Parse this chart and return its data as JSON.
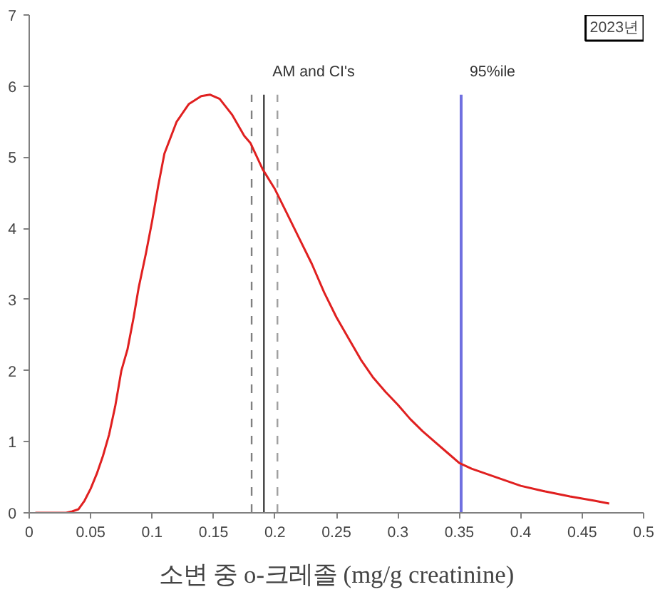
{
  "chart_data": {
    "type": "line",
    "xlabel": "소변 중 o-크레졸 (mg/g creatinine)",
    "annotations": [
      "2023년"
    ],
    "x": [
      0.005,
      0.03,
      0.035,
      0.04,
      0.045,
      0.05,
      0.055,
      0.06,
      0.065,
      0.07,
      0.075,
      0.08,
      0.085,
      0.089,
      0.095,
      0.1,
      0.105,
      0.11,
      0.12,
      0.13,
      0.14,
      0.147,
      0.155,
      0.165,
      0.175,
      0.18,
      0.19,
      0.2,
      0.21,
      0.22,
      0.23,
      0.24,
      0.25,
      0.26,
      0.27,
      0.28,
      0.29,
      0.3,
      0.31,
      0.32,
      0.33,
      0.34,
      0.35,
      0.36,
      0.38,
      0.4,
      0.42,
      0.44,
      0.46,
      0.472
    ],
    "series": [
      {
        "color": "#e02020",
        "values": [
          0,
          0,
          0.02,
          0.05,
          0.17,
          0.34,
          0.55,
          0.8,
          1.1,
          1.5,
          2.0,
          2.3,
          2.75,
          3.16,
          3.65,
          4.1,
          4.6,
          5.05,
          5.5,
          5.75,
          5.86,
          5.88,
          5.82,
          5.6,
          5.3,
          5.2,
          4.83,
          4.55,
          4.2,
          3.85,
          3.5,
          3.1,
          2.75,
          2.45,
          2.15,
          1.9,
          1.7,
          1.52,
          1.32,
          1.15,
          1.0,
          0.85,
          0.7,
          0.62,
          0.5,
          0.38,
          0.3,
          0.23,
          0.17,
          0.13
        ]
      }
    ],
    "ref_lines": [
      {
        "axis": "x",
        "value": 0.181,
        "label": null,
        "color": "#808080",
        "line_style": "dashed"
      },
      {
        "axis": "x",
        "value": 0.191,
        "label": "AM and CI's",
        "color": "#404040",
        "line_style": "solid"
      },
      {
        "axis": "x",
        "value": 0.202,
        "label": null,
        "color": "#a0a0a0",
        "line_style": "dashed"
      },
      {
        "axis": "x",
        "value": 0.3515,
        "label": "95%ile",
        "color": "#7070e0",
        "line_style": "solid"
      }
    ],
    "xlim": [
      0,
      0.5
    ],
    "ylim": [
      0,
      7
    ],
    "xticks": [
      0,
      0.05,
      0.1,
      0.15,
      0.2,
      0.25,
      0.3,
      0.35,
      0.4,
      0.45,
      0.5
    ],
    "yticks": [
      0,
      1,
      2,
      3,
      4,
      5,
      6,
      7
    ],
    "grid": false,
    "marker": "none",
    "line_style": "solid"
  }
}
